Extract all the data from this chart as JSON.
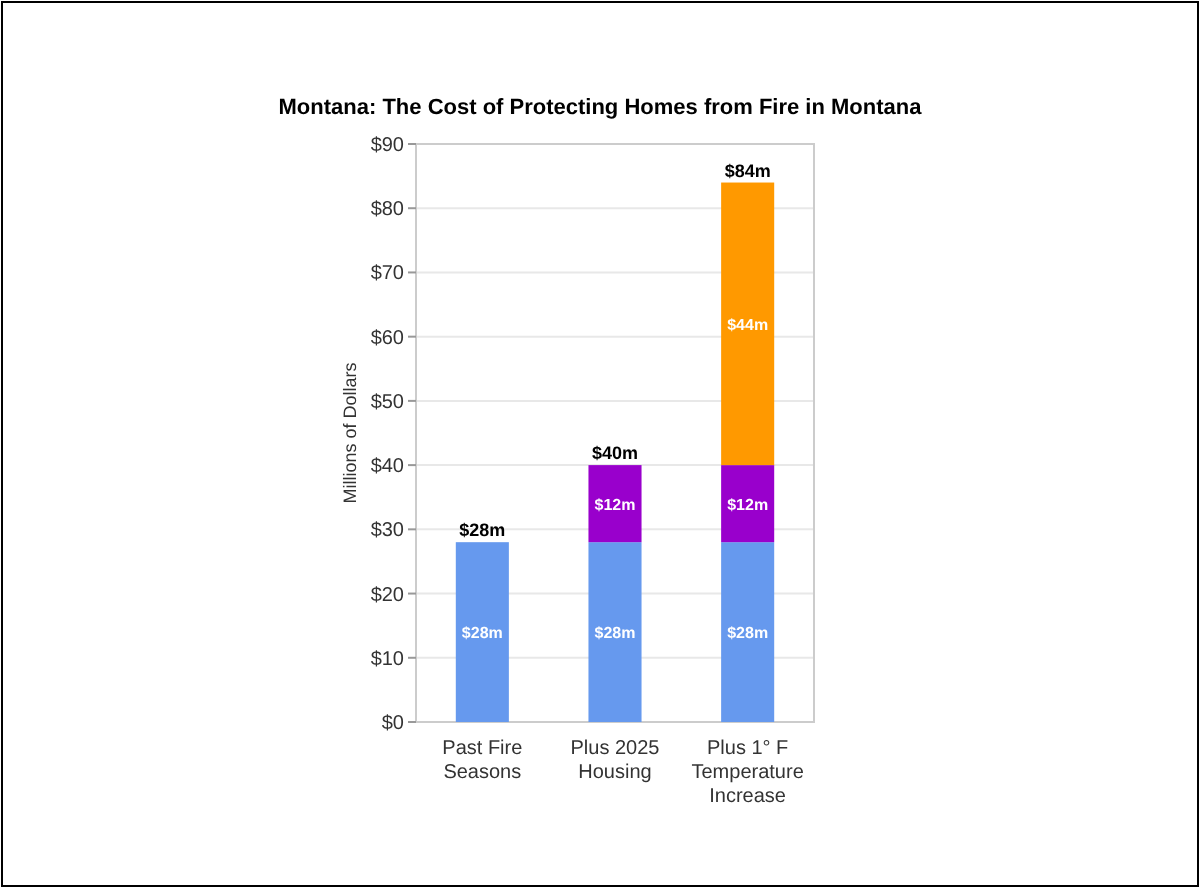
{
  "chart_data": {
    "type": "bar",
    "title": "Montana: The Cost of Protecting Homes from Fire in Montana",
    "ylabel": "Millions of Dollars",
    "categories": [
      "Past Fire Seasons",
      "Plus 2025 Housing",
      "Plus 1° F Temperature Increase"
    ],
    "stacked": true,
    "series": [
      {
        "color": "#6699ee",
        "values": [
          28,
          28,
          28
        ],
        "value_labels": [
          "$28m",
          "$28m",
          "$28m"
        ]
      },
      {
        "color": "#9900cc",
        "values": [
          null,
          12,
          12
        ],
        "value_labels": [
          null,
          "$12m",
          "$12m"
        ]
      },
      {
        "color": "#ff9900",
        "values": [
          null,
          null,
          44
        ],
        "value_labels": [
          null,
          null,
          "$44m"
        ]
      }
    ],
    "totals": [
      "$28m",
      "$40m",
      "$84m"
    ],
    "ylim": [
      0,
      90
    ],
    "yticks": [
      {
        "value": 0,
        "label": "$0"
      },
      {
        "value": 10,
        "label": "$10"
      },
      {
        "value": 20,
        "label": "$20"
      },
      {
        "value": 30,
        "label": "$30"
      },
      {
        "value": 40,
        "label": "$40"
      },
      {
        "value": 50,
        "label": "$50"
      },
      {
        "value": 60,
        "label": "$60"
      },
      {
        "value": 70,
        "label": "$70"
      },
      {
        "value": 80,
        "label": "$80"
      },
      {
        "value": 90,
        "label": "$90"
      }
    ],
    "grid": "y"
  }
}
